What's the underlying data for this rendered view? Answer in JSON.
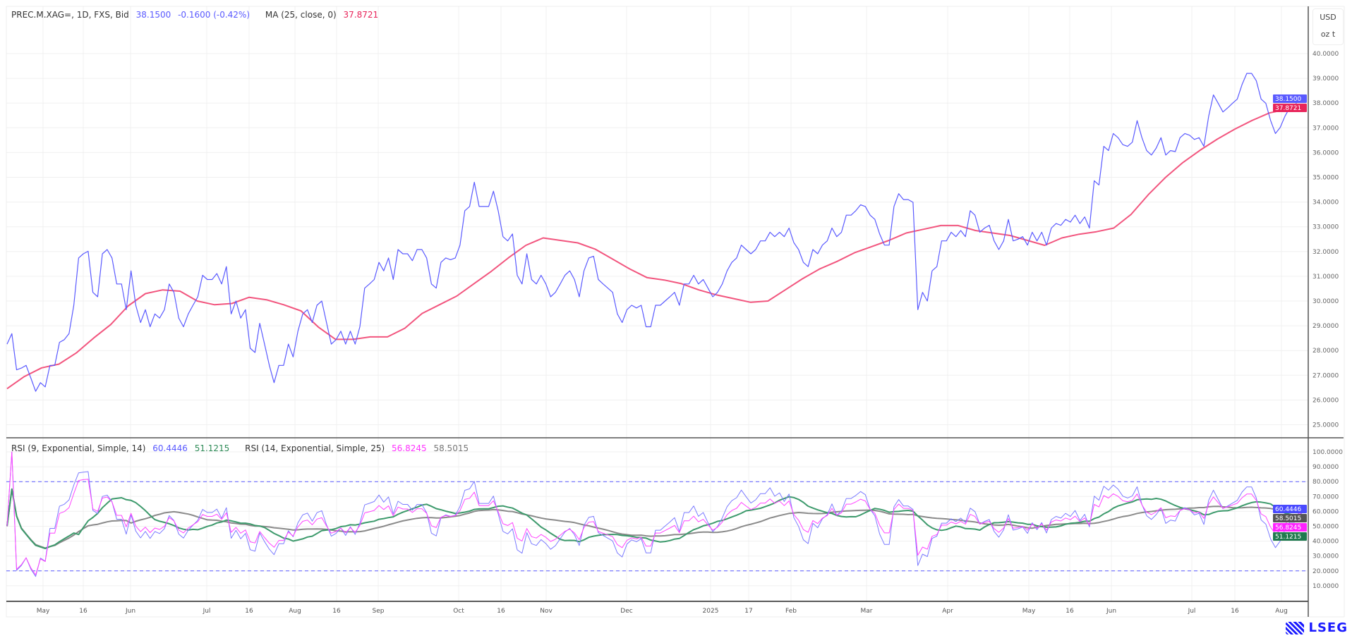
{
  "legend_price": {
    "symbol": "PREC.M.XAG=, 1D, FXS, Bid",
    "last": "38.1500",
    "change": "-0.1600 (-0.42%)",
    "ma_label": "MA (25, close, 0)",
    "ma_value": "37.8721"
  },
  "legend_rsi": {
    "rsi9_label": "RSI (9, Exponential, Simple, 14)",
    "rsi9_value": "60.4446",
    "rsi9_signal_value": "51.1215",
    "rsi14_label": "RSI (14, Exponential, Simple, 25)",
    "rsi14_value": "56.8245",
    "rsi14_signal_value": "58.5015"
  },
  "units": {
    "currency": "USD",
    "unit": "oz t"
  },
  "brand": "LSEG",
  "colors": {
    "price": "#5a5aff",
    "ma": "#f2557e",
    "ma_label": "#e8245a",
    "rsi9": "#7b7bff",
    "rsi14": "#ff44ff",
    "rsi9_signal": "#3d9a6c",
    "rsi14_signal": "#8a8a8a",
    "rsi_bands": "#5a5aff"
  },
  "chart_data": [
    {
      "type": "line",
      "pane": "price",
      "ylim": [
        24.5,
        40.5
      ],
      "y_tick_labels": [
        "25.0000",
        "26.0000",
        "27.0000",
        "28.0000",
        "29.0000",
        "30.0000",
        "31.0000",
        "32.0000",
        "33.0000",
        "34.0000",
        "35.0000",
        "36.0000",
        "37.0000",
        "38.0000",
        "39.0000",
        "40.0000"
      ],
      "x_tick_labels": [
        "May",
        "16",
        "Jun",
        "Jul",
        "16",
        "Aug",
        "16",
        "Sep",
        "Oct",
        "16",
        "Nov",
        "Dec",
        "2025",
        "17",
        "Feb",
        "Mar",
        "Apr",
        "May",
        "16",
        "Jun",
        "Jul",
        "16",
        "Aug"
      ],
      "grid": true,
      "series": [
        {
          "name": "PREC.M.XAG=, 1D, FXS, Bid",
          "last_label": "38.1500",
          "values": [
            28.26,
            28.68,
            27.22,
            27.29,
            27.4,
            26.88,
            26.35,
            26.7,
            26.53,
            27.4,
            27.4,
            28.33,
            28.44,
            28.68,
            29.83,
            31.74,
            31.91,
            32.01,
            30.35,
            30.17,
            31.91,
            32.08,
            31.74,
            30.69,
            30.69,
            29.65,
            31.22,
            29.83,
            29.13,
            29.65,
            28.96,
            29.48,
            29.31,
            29.65,
            30.69,
            30.35,
            29.31,
            28.96,
            29.48,
            29.83,
            30.17,
            31.04,
            30.87,
            30.87,
            31.11,
            30.69,
            31.39,
            29.48,
            30.0,
            29.31,
            29.65,
            28.09,
            27.92,
            29.1,
            28.26,
            27.4,
            26.7,
            27.4,
            27.4,
            28.26,
            27.74,
            28.78,
            29.48,
            29.65,
            29.13,
            29.83,
            30.0,
            29.13,
            28.26,
            28.44,
            28.78,
            28.26,
            28.78,
            28.26,
            28.96,
            30.52,
            30.69,
            30.87,
            31.56,
            31.22,
            31.74,
            30.87,
            32.08,
            31.91,
            31.91,
            31.63,
            32.08,
            32.08,
            31.74,
            30.69,
            30.52,
            31.56,
            31.74,
            31.67,
            31.74,
            32.26,
            33.65,
            33.82,
            34.8,
            33.82,
            33.82,
            33.82,
            34.44,
            33.65,
            32.6,
            32.43,
            32.71,
            31.04,
            30.69,
            31.91,
            30.87,
            30.69,
            31.04,
            30.69,
            30.17,
            30.35,
            30.69,
            31.04,
            31.22,
            30.87,
            30.17,
            31.22,
            31.74,
            31.81,
            30.87,
            30.69,
            30.52,
            30.35,
            29.48,
            29.13,
            29.65,
            29.83,
            29.72,
            29.83,
            28.96,
            28.96,
            29.83,
            29.83,
            30.0,
            30.17,
            30.35,
            29.83,
            30.69,
            30.69,
            31.04,
            30.69,
            30.87,
            30.52,
            30.17,
            30.35,
            30.69,
            31.22,
            31.56,
            31.74,
            32.26,
            32.08,
            31.91,
            32.08,
            32.43,
            32.43,
            32.78,
            32.6,
            32.78,
            32.6,
            32.95,
            32.36,
            32.08,
            31.56,
            31.39,
            32.08,
            31.91,
            32.26,
            32.43,
            32.95,
            32.6,
            32.78,
            33.47,
            33.47,
            33.65,
            33.89,
            33.82,
            33.47,
            33.3,
            32.71,
            32.26,
            32.26,
            33.82,
            34.34,
            34.1,
            34.1,
            33.99,
            29.65,
            30.35,
            30.0,
            31.22,
            31.39,
            32.43,
            32.43,
            32.78,
            32.6,
            32.85,
            32.6,
            33.65,
            33.47,
            32.78,
            32.95,
            33.06,
            32.43,
            32.08,
            32.43,
            33.3,
            32.43,
            32.5,
            32.6,
            32.26,
            32.78,
            32.43,
            32.78,
            32.26,
            32.95,
            33.13,
            33.06,
            33.3,
            33.19,
            33.47,
            33.13,
            33.4,
            32.95,
            34.86,
            34.69,
            36.25,
            36.08,
            36.77,
            36.6,
            36.32,
            36.25,
            36.42,
            37.29,
            36.6,
            36.08,
            35.9,
            36.18,
            36.6,
            35.9,
            36.08,
            36.04,
            36.6,
            36.77,
            36.7,
            36.53,
            36.6,
            36.25,
            37.47,
            38.33,
            37.99,
            37.64,
            37.81,
            37.99,
            38.16,
            38.75,
            39.2,
            39.2,
            38.9,
            38.16,
            37.99,
            37.29,
            36.77,
            37.01,
            37.47,
            37.81,
            37.81,
            38.33,
            38.15
          ]
        },
        {
          "name": "MA (25, close, 0)",
          "last_label": "37.8721",
          "values": [
            26.46,
            26.95,
            27.3,
            27.45,
            27.9,
            28.5,
            29.05,
            29.8,
            30.3,
            30.45,
            30.4,
            30.0,
            29.85,
            29.9,
            30.15,
            30.05,
            29.85,
            29.6,
            28.95,
            28.45,
            28.45,
            28.55,
            28.55,
            28.9,
            29.5,
            29.85,
            30.2,
            30.7,
            31.2,
            31.75,
            32.25,
            32.55,
            32.45,
            32.35,
            32.1,
            31.7,
            31.3,
            30.95,
            30.85,
            30.7,
            30.45,
            30.25,
            30.1,
            29.95,
            30.0,
            30.45,
            30.9,
            31.3,
            31.6,
            31.95,
            32.2,
            32.45,
            32.75,
            32.9,
            33.05,
            33.05,
            32.85,
            32.75,
            32.65,
            32.45,
            32.25,
            32.55,
            32.7,
            32.8,
            32.95,
            33.5,
            34.3,
            35.0,
            35.6,
            36.1,
            36.55,
            36.95,
            37.3,
            37.6,
            37.75,
            37.87
          ]
        }
      ]
    },
    {
      "type": "line",
      "pane": "rsi",
      "ylim": [
        0,
        105
      ],
      "y_tick_labels": [
        "10.0000",
        "20.0000",
        "30.0000",
        "40.0000",
        "50.0000",
        "60.0000",
        "70.0000",
        "80.0000",
        "90.0000",
        "100.0000"
      ],
      "bands": [
        20,
        80
      ],
      "grid": true,
      "series": [
        {
          "name": "RSI (9, Exponential, Simple, 14)",
          "period": 9,
          "signal_period": 14,
          "last_label": "60.4446",
          "signal_last_label": "51.1215"
        },
        {
          "name": "RSI (14, Exponential, Simple, 25)",
          "period": 14,
          "signal_period": 25,
          "last_label": "56.8245",
          "signal_last_label": "58.5015"
        }
      ]
    }
  ]
}
